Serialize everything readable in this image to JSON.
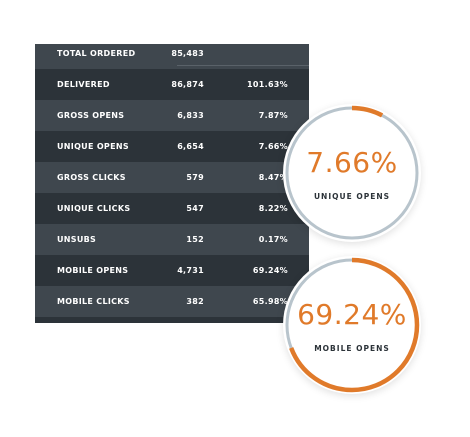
{
  "table": {
    "rows": [
      {
        "label": "TOTAL ORDERED",
        "count": "85,483",
        "pct": ""
      },
      {
        "label": "DELIVERED",
        "count": "86,874",
        "pct": "101.63%"
      },
      {
        "label": "GROSS OPENS",
        "count": "6,833",
        "pct": "7.87%"
      },
      {
        "label": "UNIQUE OPENS",
        "count": "6,654",
        "pct": "7.66%"
      },
      {
        "label": "GROSS CLICKS",
        "count": "579",
        "pct": "8.47%"
      },
      {
        "label": "UNIQUE CLICKS",
        "count": "547",
        "pct": "8.22%"
      },
      {
        "label": "UNSUBS",
        "count": "152",
        "pct": "0.17%"
      },
      {
        "label": "MOBILE OPENS",
        "count": "4,731",
        "pct": "69.24%"
      },
      {
        "label": "MOBILE CLICKS",
        "count": "382",
        "pct": "65.98%"
      }
    ]
  },
  "rings": [
    {
      "value_text": "7.66%",
      "caption": "UNIQUE OPENS",
      "fraction": 0.0766
    },
    {
      "value_text": "69.24%",
      "caption": "MOBILE OPENS",
      "fraction": 0.6924
    }
  ],
  "colors": {
    "accent": "#e07a2a",
    "track": "#b8c4cc",
    "panel_dark": "#2c3339",
    "panel_light": "#3f474e"
  }
}
